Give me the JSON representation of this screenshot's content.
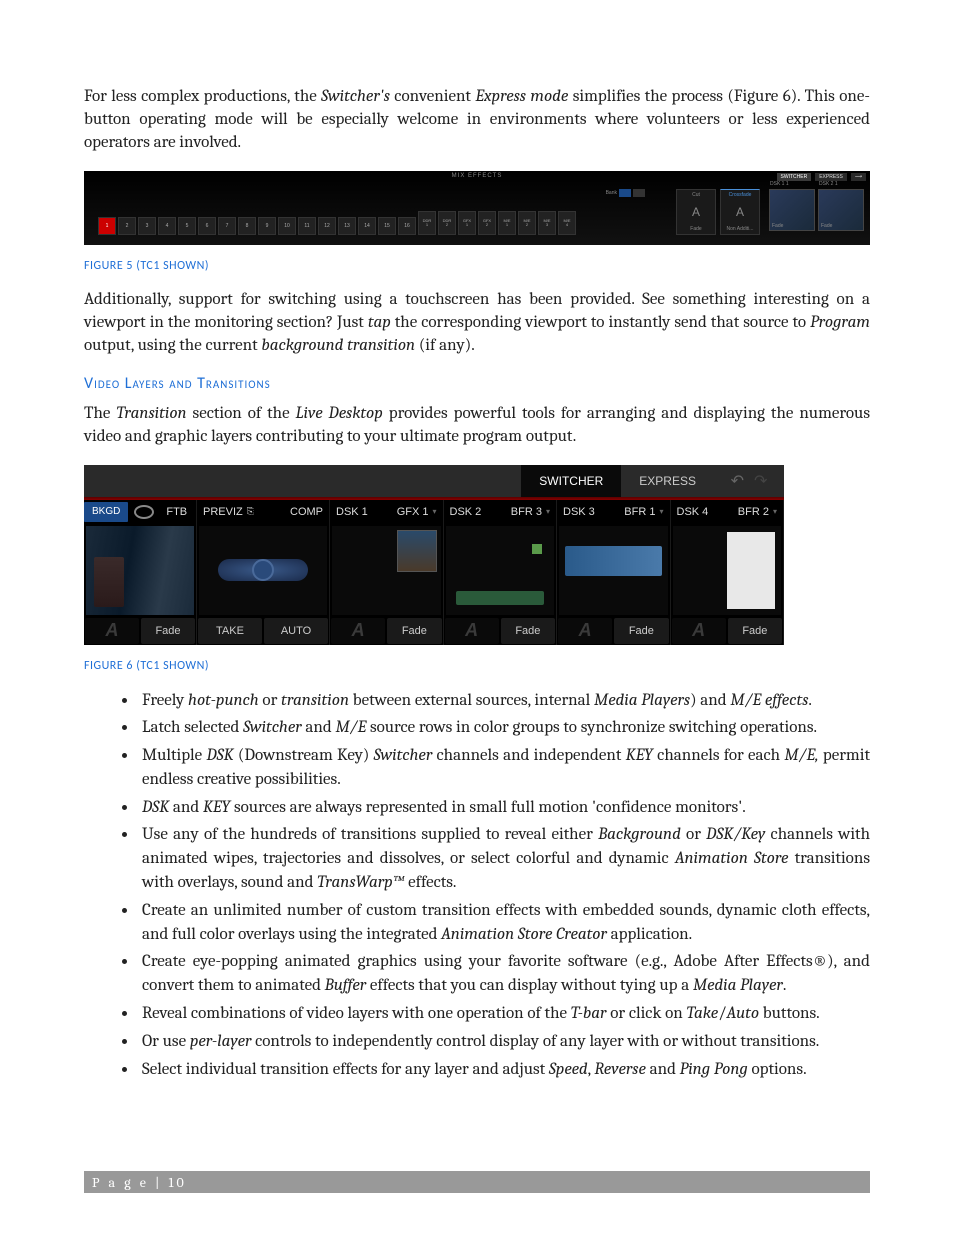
{
  "para1_html": "For less complex productions, the <em>Switcher's</em> convenient <em>Express mode</em> simplifies the process (Figure 6).  This one-button operating mode will be especially welcome in environments where volunteers or less experienced operators are involved.",
  "fig5": {
    "title": "MIX EFFECTS",
    "numbers": [
      "1",
      "2",
      "3",
      "4",
      "5",
      "6",
      "7",
      "8",
      "9",
      "10",
      "11",
      "12",
      "13",
      "14",
      "15",
      "16"
    ],
    "extra": [
      [
        "DDR",
        "1"
      ],
      [
        "DDR",
        "2"
      ],
      [
        "GFX",
        "1"
      ],
      [
        "GFX",
        "2"
      ],
      [
        "M/E",
        "1"
      ],
      [
        "M/E",
        "2"
      ],
      [
        "M/E",
        "3"
      ],
      [
        "M/E",
        "4"
      ]
    ],
    "bank": "Bank",
    "tabs": [
      "SWITCHER",
      "EXPRESS"
    ],
    "cut": "Cut",
    "crossfade": "Crossfade",
    "fade": "Fade",
    "nonadd": "Non Additi...",
    "dsk1": "DSK 1  1",
    "dsk2": "DSK 2  1"
  },
  "caption5": "FIGURE 5 (TC1 SHOWN)",
  "para2_html": "Additionally, support for switching using a touchscreen has been provided. See something interesting on a viewport in the monitoring section?  Just <em>tap</em> the corresponding viewport to instantly send that source to <em>Program</em> output, using the current <em>background transition</em> (if any).",
  "heading": "Video Layers and Transitions",
  "para3_html": "The <em>Transition</em> section of the <em>Live Desktop</em> provides powerful tools for arranging and displaying the numerous video and graphic layers contributing to your ultimate program output.",
  "fig6": {
    "tabs": [
      "SWITCHER",
      "EXPRESS"
    ],
    "col_bkgd": {
      "labs": [
        "BKGD",
        "",
        "FTB"
      ],
      "btn": "Fade"
    },
    "col_previz": {
      "labs": [
        "PREVIZ",
        "COMP"
      ],
      "btns": [
        "TAKE",
        "AUTO"
      ]
    },
    "dsk": [
      {
        "l1": "DSK 1",
        "l2": "GFX 1",
        "btn": "Fade"
      },
      {
        "l1": "DSK 2",
        "l2": "BFR 3",
        "btn": "Fade"
      },
      {
        "l1": "DSK 3",
        "l2": "BFR 1",
        "btn": "Fade"
      },
      {
        "l1": "DSK 4",
        "l2": "BFR 2",
        "btn": "Fade"
      }
    ]
  },
  "caption6": "FIGURE 6 (TC1 SHOWN)",
  "bullets": [
    "Freely <em>hot-punch</em> or <em>transition</em> between external sources, internal <em>Media Players</em>) and <em>M/E effects</em>.",
    "Latch selected <em>Switcher</em> and <em>M/E</em> source rows in color groups to synchronize switching operations.",
    "Multiple <em>DSK</em> (Downstream Key) <em>Switcher</em> channels and independent <em>KEY</em> channels for each <em>M/E,</em> permit endless creative possibilities.",
    "<em>DSK</em> and <em>KEY</em> sources are always represented in small full motion 'confidence monitors'.",
    "Use any of the hundreds of transitions supplied to reveal either <em>Background</em> or <em>DSK/Key</em> channels with animated wipes, trajectories and dissolves, or select colorful and dynamic <em>Animation Store</em> transitions with overlays, sound and <em>TransWarp™</em> effects.",
    "Create an unlimited number of custom transition effects with embedded sounds, dynamic cloth effects, and full color overlays using the integrated <em>Animation Store Creator</em> application.",
    "Create eye-popping animated graphics using your favorite software (e.g., Adobe After Effects®), and convert them to animated <em>Buffer</em> effects that you can display without tying up a <em>Media Player</em>.",
    "Reveal combinations of video layers with one operation of the <em>T-bar</em> or click on <em>Take</em>/<em>Auto</em> buttons.",
    "Or use <em>per-layer</em> controls to independently control display of any layer with or without transitions.",
    "Select individual transition effects for any layer and adjust <em>Speed</em>, <em>Reverse</em> and <em>Ping Pong</em> options."
  ],
  "footer": "P a g e  | 10"
}
